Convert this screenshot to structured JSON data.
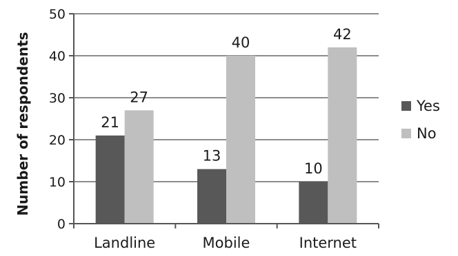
{
  "chart_data": {
    "type": "bar",
    "title": "",
    "xlabel": "",
    "ylabel": "Number of respondents",
    "categories": [
      "Landline",
      "Mobile",
      "Internet"
    ],
    "series": [
      {
        "name": "Yes",
        "values": [
          21,
          13,
          10
        ],
        "color": "#585858"
      },
      {
        "name": "No",
        "values": [
          27,
          40,
          42
        ],
        "color": "#bfbfbf"
      }
    ],
    "ylim": [
      0,
      50
    ],
    "yticks": [
      0,
      10,
      20,
      30,
      40,
      50
    ],
    "grid": true,
    "legend_position": "right",
    "data_labels": true
  }
}
